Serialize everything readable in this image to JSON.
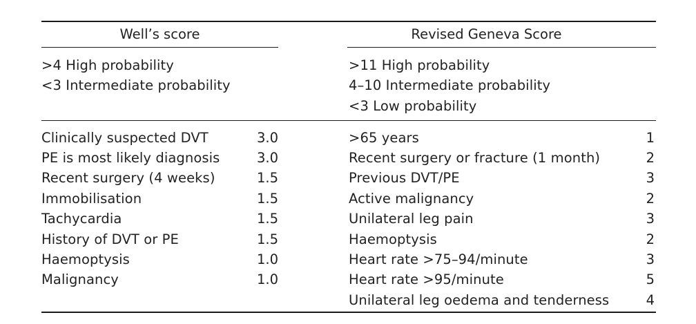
{
  "wells": {
    "header": "Well’s score",
    "thresholds": [
      ">4 High probability",
      "<3 Intermediate probability"
    ],
    "rows": [
      {
        "criterion": "Clinically suspected DVT",
        "points": "3.0"
      },
      {
        "criterion": "PE is most likely diagnosis",
        "points": "3.0"
      },
      {
        "criterion": "Recent surgery (4 weeks)",
        "points": "1.5"
      },
      {
        "criterion": "Immobilisation",
        "points": "1.5"
      },
      {
        "criterion": "Tachycardia",
        "points": "1.5"
      },
      {
        "criterion": "History of DVT or PE",
        "points": "1.5"
      },
      {
        "criterion": "Haemoptysis",
        "points": "1.0"
      },
      {
        "criterion": "Malignancy",
        "points": "1.0"
      }
    ]
  },
  "geneva": {
    "header": "Revised Geneva Score",
    "thresholds": [
      ">11 High probability",
      "4–10 Intermediate probability",
      "<3 Low probability"
    ],
    "rows": [
      {
        "criterion": ">65 years",
        "points": "1"
      },
      {
        "criterion": "Recent surgery or fracture (1 month)",
        "points": "2"
      },
      {
        "criterion": "Previous DVT/PE",
        "points": "3"
      },
      {
        "criterion": "Active malignancy",
        "points": "2"
      },
      {
        "criterion": "Unilateral leg pain",
        "points": "3"
      },
      {
        "criterion": "Haemoptysis",
        "points": "2"
      },
      {
        "criterion": "Heart rate >75–94/minute",
        "points": "3"
      },
      {
        "criterion": "Heart rate >95/minute",
        "points": "5"
      },
      {
        "criterion": "Unilateral leg oedema and tenderness",
        "points": "4"
      }
    ]
  }
}
